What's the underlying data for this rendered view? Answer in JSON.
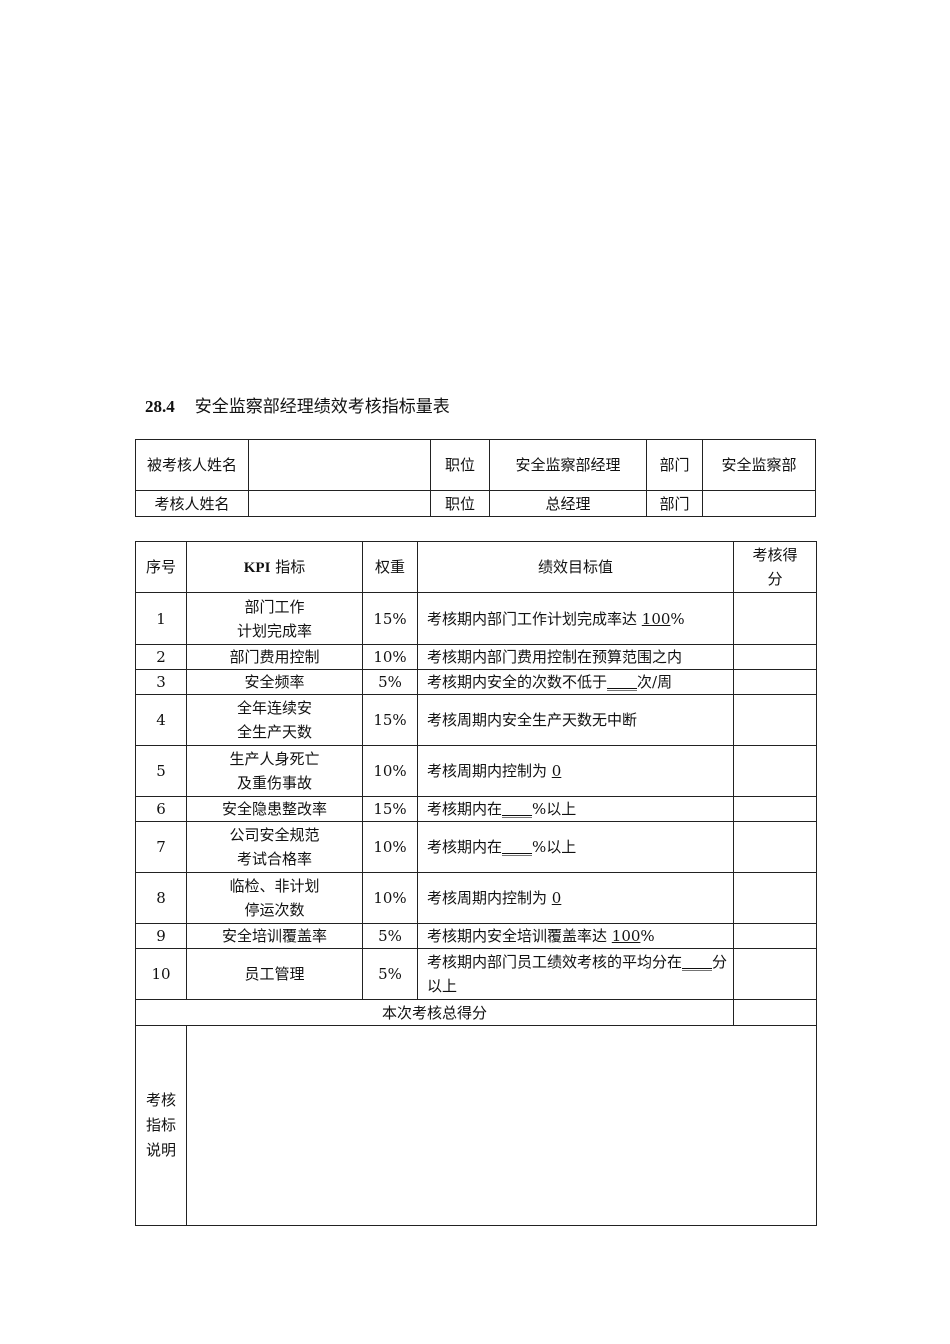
{
  "title": {
    "number": "28.4",
    "text": "安全监察部经理绩效考核指标量表"
  },
  "info_table": {
    "row1": {
      "label": "被考核人姓名",
      "name_value": "",
      "position_label": "职位",
      "position_value": "安全监察部经理",
      "dept_label": "部门",
      "dept_value": "安全监察部"
    },
    "row2": {
      "label": "考核人姓名",
      "name_value": "",
      "position_label": "职位",
      "position_value": "总经理",
      "dept_label": "部门",
      "dept_value": ""
    }
  },
  "kpi_table": {
    "headers": {
      "index": "序号",
      "kpi_bold": "KPI",
      "kpi": " 指标",
      "weight": "权重",
      "target": "绩效目标值",
      "score": "考核得分"
    },
    "rows": [
      {
        "index": "1",
        "kpi": "部门工作\n计划完成率",
        "weight": "15%",
        "before": "考核期内部门工作计划完成率达 ",
        "underlined": "100",
        "after": "%",
        "score": ""
      },
      {
        "index": "2",
        "kpi": "部门费用控制",
        "weight": "10%",
        "before": "考核期内部门费用控制在预算范围之内",
        "underlined": "",
        "after": "",
        "score": ""
      },
      {
        "index": "3",
        "kpi": "安全频率",
        "weight": "5%",
        "before": "考核期内安全的次数不低于",
        "underlined": "____",
        "after": "次/周",
        "score": ""
      },
      {
        "index": "4",
        "kpi": "全年连续安\n全生产天数",
        "weight": "15%",
        "before": "考核周期内安全生产天数无中断",
        "underlined": "",
        "after": "",
        "score": ""
      },
      {
        "index": "5",
        "kpi": "生产人身死亡\n及重伤事故",
        "weight": "10%",
        "before": "考核周期内控制为 ",
        "underlined": "0",
        "after": "",
        "score": ""
      },
      {
        "index": "6",
        "kpi": "安全隐患整改率",
        "weight": "15%",
        "before": "考核期内在",
        "underlined": "____",
        "after": "%以上",
        "score": ""
      },
      {
        "index": "7",
        "kpi": "公司安全规范\n考试合格率",
        "weight": "10%",
        "before": "考核期内在",
        "underlined": "____",
        "after": "%以上",
        "score": ""
      },
      {
        "index": "8",
        "kpi": "临检、非计划\n停运次数",
        "weight": "10%",
        "before": "考核周期内控制为 ",
        "underlined": "0",
        "after": "",
        "score": ""
      },
      {
        "index": "9",
        "kpi": "安全培训覆盖率",
        "weight": "5%",
        "before": "考核期内安全培训覆盖率达 ",
        "underlined": "100",
        "after": "%",
        "score": ""
      },
      {
        "index": "10",
        "kpi": "员工管理",
        "weight": "5%",
        "before": "考核期内部门员工绩效考核的平均分在",
        "underlined": "____",
        "after": "分以上",
        "score": ""
      }
    ],
    "total_label": "本次考核总得分",
    "total_score": "",
    "notes_label": "考核\n指标\n说明",
    "notes_value": ""
  }
}
